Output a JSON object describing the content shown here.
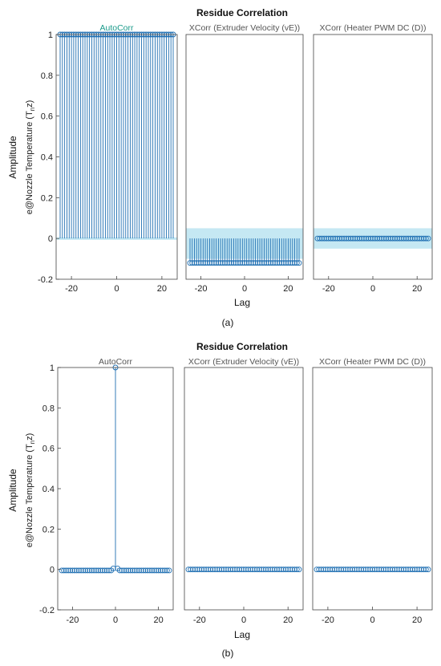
{
  "figure": {
    "panel_labels": [
      "(a)",
      "(b)"
    ]
  },
  "chart_data": [
    {
      "type": "stem",
      "title": "Residue Correlation",
      "ylabel": "Amplitude",
      "row_label_main": "e@Nozzle Temperature (T",
      "row_label_sub": "n",
      "row_label_tail": "z)",
      "xlabel": "Lag",
      "ylim": [
        -0.2,
        1
      ],
      "yticks": [
        "-0.2",
        "0",
        "0.2",
        "0.4",
        "0.6",
        "0.8",
        "1"
      ],
      "xticks": [
        "-20",
        "0",
        "20"
      ],
      "lag_range": [
        -25,
        25
      ],
      "confidence_band": "light-blue",
      "stem_color": "#1f6fb2",
      "band_color": "#bfe6f2",
      "subplots": [
        {
          "name": "AutoCorr",
          "lags": [
            -25,
            25
          ],
          "value_rule": "all lags = 1.0",
          "values_summary": 1.0,
          "band": [
            -0.005,
            0.005
          ]
        },
        {
          "name": "XCorr (Extruder Velocity (vE))",
          "lags": [
            -25,
            25
          ],
          "value_rule": "all lags ≈ -0.12",
          "values_summary": -0.12,
          "band": [
            -0.1,
            0.05
          ]
        },
        {
          "name": "XCorr (Heater PWM DC (D))",
          "lags": [
            -25,
            25
          ],
          "value_rule": "all lags ≈ 0.0",
          "values_summary": 0.0,
          "band": [
            -0.05,
            0.05
          ]
        }
      ]
    },
    {
      "type": "stem",
      "title": "Residue Correlation",
      "ylabel": "Amplitude",
      "row_label_main": "e@Nozzle Temperature (T",
      "row_label_sub": "n",
      "row_label_tail": "z)",
      "xlabel": "Lag",
      "ylim": [
        -0.2,
        1
      ],
      "yticks": [
        "-0.2",
        "0",
        "0.2",
        "0.4",
        "0.6",
        "0.8",
        "1"
      ],
      "xticks": [
        "-20",
        "0",
        "20"
      ],
      "lag_range": [
        -25,
        25
      ],
      "stem_color": "#1f6fb2",
      "subplots": [
        {
          "name": "AutoCorr",
          "lags": [
            -25,
            25
          ],
          "value_rule": "1.0 at lag 0, ≈ -0.005 elsewhere, 0.005 at lags ±1",
          "values_summary": 0.0
        },
        {
          "name": "XCorr (Extruder Velocity (vE))",
          "lags": [
            -25,
            25
          ],
          "value_rule": "all lags ≈ 0.0",
          "values_summary": 0.0
        },
        {
          "name": "XCorr (Heater PWM DC (D))",
          "lags": [
            -25,
            25
          ],
          "value_rule": "all lags ≈ 0.0",
          "values_summary": 0.0
        }
      ]
    }
  ]
}
